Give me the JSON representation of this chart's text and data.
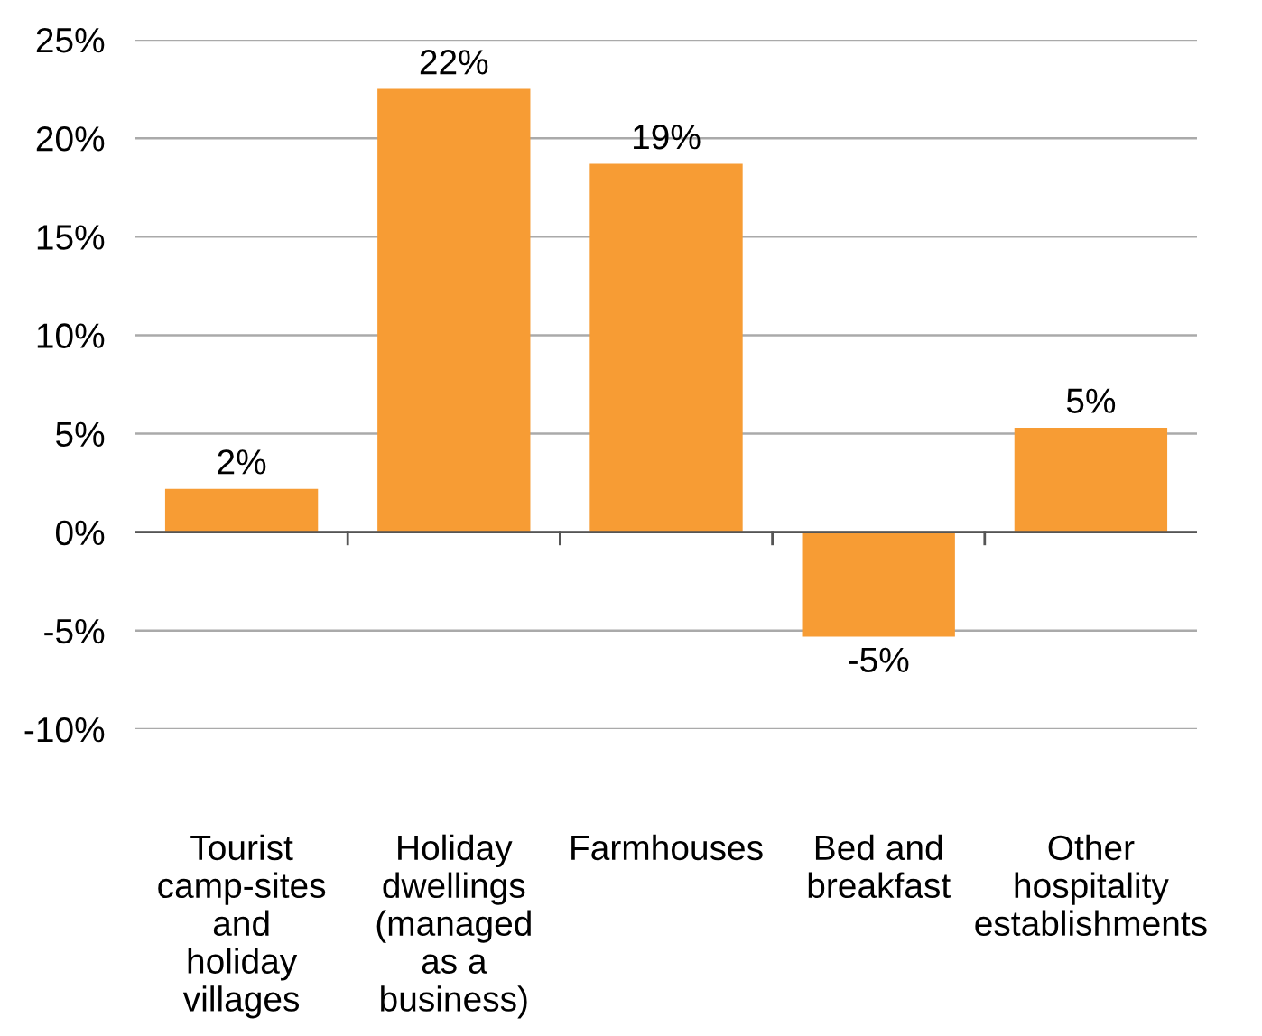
{
  "chart_data": {
    "type": "bar",
    "categories": [
      "Tourist\ncamp-sites\nand\nholiday\nvillages",
      "Holiday\ndwellings\n(managed\nas a\nbusiness)",
      "Farmhouses",
      "Bed and\nbreakfast",
      "Other\nhospitality\nestablishments"
    ],
    "values": [
      2.2,
      22.5,
      18.7,
      -5.3,
      5.3
    ],
    "value_labels": [
      "2%",
      "22%",
      "19%",
      "-5%",
      "5%"
    ],
    "color": "#f79c34",
    "ylim": [
      -10,
      25
    ],
    "yticks": [
      {
        "value": -10,
        "label": "-10%"
      },
      {
        "value": -5,
        "label": "-5%"
      },
      {
        "value": 0,
        "label": "0%"
      },
      {
        "value": 5,
        "label": "5%"
      },
      {
        "value": 10,
        "label": "10%"
      },
      {
        "value": 15,
        "label": "15%"
      },
      {
        "value": 20,
        "label": "20%"
      },
      {
        "value": 25,
        "label": "25%"
      }
    ],
    "grid": "y"
  }
}
